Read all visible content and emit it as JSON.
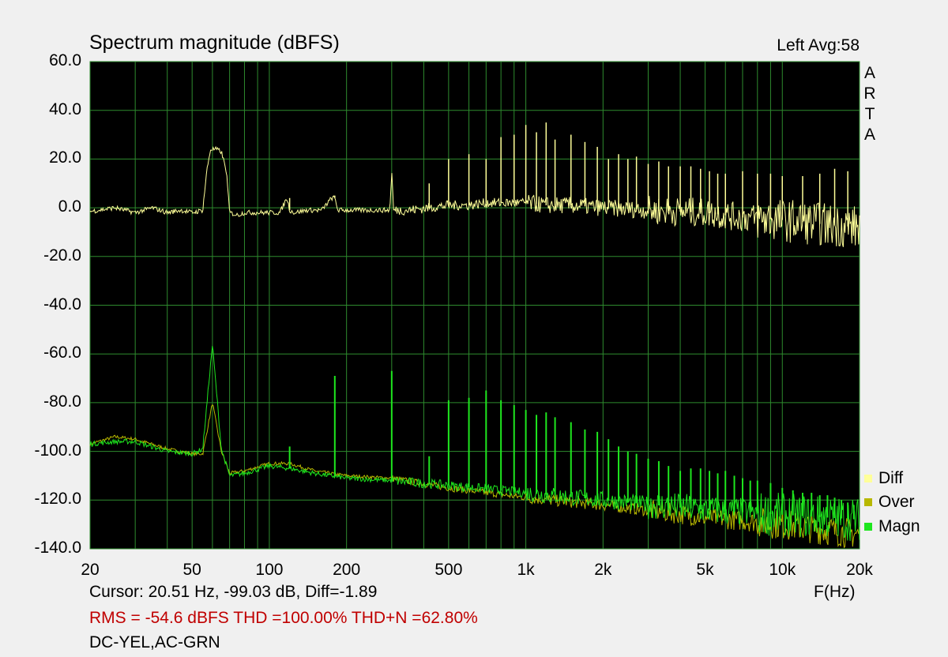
{
  "header": {
    "title": "Spectrum magnitude (dBFS)",
    "channel": "Left  Avg:58"
  },
  "brand": [
    "A",
    "R",
    "T",
    "A"
  ],
  "footer": {
    "cursor": "Cursor: 20.51 Hz, -99.03 dB,  Diff=-1.89",
    "stats": "RMS =  -54.6 dBFS  THD =100.00%  THD+N =62.80%",
    "mode": "DC-YEL,AC-GRN",
    "x_unit": "F(Hz)"
  },
  "colors": {
    "background": "#000000",
    "grid": "#2e8b2e",
    "diff": "#ffff99",
    "over": "#b8b800",
    "magn": "#1ee61e",
    "stats_text": "#c00000"
  },
  "chart_data": {
    "type": "line",
    "title": "Spectrum magnitude (dBFS)",
    "xlabel": "F(Hz)",
    "ylabel": "",
    "x_scale": "log",
    "xlim": [
      20,
      20000
    ],
    "ylim": [
      -140,
      60
    ],
    "grid": true,
    "legend_position": "bottom-right",
    "x_tick_labels": [
      "20",
      "50",
      "100",
      "200",
      "500",
      "1k",
      "2k",
      "5k",
      "10k",
      "20k"
    ],
    "y_tick_labels": [
      "60.0",
      "40.0",
      "20.0",
      "0.0",
      "-20.0",
      "-40.0",
      "-60.0",
      "-80.0",
      "-100.0",
      "-120.0",
      "-140.0"
    ],
    "series": [
      {
        "name": "Diff",
        "color": "#ffff99",
        "x": [
          20,
          25,
          30,
          35,
          40,
          45,
          50,
          55,
          57,
          59,
          62,
          65,
          68,
          70,
          75,
          80,
          90,
          100,
          110,
          117,
          120,
          125,
          140,
          160,
          175,
          180,
          185,
          200,
          250,
          295,
          300,
          305,
          350,
          420,
          500,
          600,
          700,
          800,
          1000,
          1200,
          1500,
          2000,
          3000,
          5000,
          7000,
          10000,
          15000,
          20000
        ],
        "y": [
          -1.5,
          0,
          -2,
          0,
          -2,
          -1,
          -2,
          -1,
          15,
          24,
          24,
          23,
          15,
          -2,
          -3,
          -2,
          -2,
          -2,
          -2,
          4,
          -1,
          -2,
          -1,
          -1,
          4,
          4,
          -1,
          -1,
          -1,
          -1,
          15,
          -1,
          -1,
          0,
          1,
          1,
          2,
          2,
          2,
          1,
          1,
          0,
          -1,
          -2,
          -4,
          -5,
          -7,
          -8
        ]
      },
      {
        "name": "Over",
        "color": "#b8b800",
        "x": [
          20,
          25,
          30,
          40,
          50,
          55,
          60,
          65,
          70,
          80,
          100,
          120,
          150,
          200,
          300,
          500,
          1000,
          2000,
          5000,
          10000,
          20000
        ],
        "y": [
          -97,
          -94,
          -95,
          -99,
          -101,
          -101,
          -80,
          -100,
          -109,
          -108,
          -105,
          -105,
          -108,
          -110,
          -111,
          -115,
          -119,
          -122,
          -127,
          -130,
          -134
        ]
      },
      {
        "name": "Magn",
        "color": "#1ee61e",
        "x": [
          20,
          25,
          30,
          40,
          50,
          55,
          60,
          65,
          70,
          80,
          100,
          120,
          150,
          200,
          300,
          500,
          1000,
          2000,
          5000,
          10000,
          20000
        ],
        "y": [
          -97,
          -96,
          -96,
          -100,
          -101,
          -99,
          -56,
          -99,
          -110,
          -109,
          -106,
          -107,
          -109,
          -111,
          -112,
          -114,
          -117,
          -120,
          -124,
          -126,
          -128
        ]
      }
    ],
    "harmonics": {
      "magn_peaks_x": [
        60,
        120,
        180,
        300,
        420,
        500,
        600,
        700,
        800,
        900,
        1000,
        1100,
        1200,
        1300,
        1500,
        1700,
        1900,
        2100,
        2300,
        2500,
        2700,
        3000,
        3300,
        3600,
        4000,
        4400,
        4800,
        5200,
        5600,
        6000,
        6500,
        7000,
        7500,
        8000,
        9000,
        10000,
        11000,
        12000,
        13000,
        14000,
        15000,
        16000,
        17000,
        18000,
        19000
      ],
      "magn_peaks_y": [
        -56,
        -98,
        -69,
        -67,
        -102,
        -79,
        -78,
        -75,
        -79,
        -81,
        -83,
        -85,
        -84,
        -86,
        -88,
        -91,
        -92,
        -95,
        -98,
        -100,
        -101,
        -103,
        -104,
        -106,
        -108,
        -107,
        -107,
        -108,
        -109,
        -108,
        -110,
        -111,
        -112,
        -112,
        -113,
        -115,
        -116,
        -117,
        -117,
        -118,
        -118,
        -119,
        -120,
        -121,
        -122
      ],
      "diff_peaks_x": [
        60,
        120,
        180,
        300,
        420,
        500,
        600,
        700,
        800,
        900,
        1000,
        1100,
        1200,
        1300,
        1500,
        1700,
        1900,
        2100,
        2300,
        2500,
        2700,
        3000,
        3300,
        3600,
        4000,
        4400,
        4800,
        5200,
        5600,
        6000,
        7000,
        8000,
        9000,
        10000,
        12000,
        14000,
        16000,
        18000
      ],
      "diff_peaks_y": [
        24,
        4,
        5,
        15,
        10,
        20,
        22,
        20,
        29,
        30,
        34,
        31,
        35,
        28,
        30,
        27,
        25,
        20,
        22,
        20,
        21,
        18,
        19,
        17,
        17,
        17,
        16,
        15,
        14,
        14,
        15,
        14,
        14,
        13,
        13,
        14,
        16,
        15
      ]
    }
  }
}
